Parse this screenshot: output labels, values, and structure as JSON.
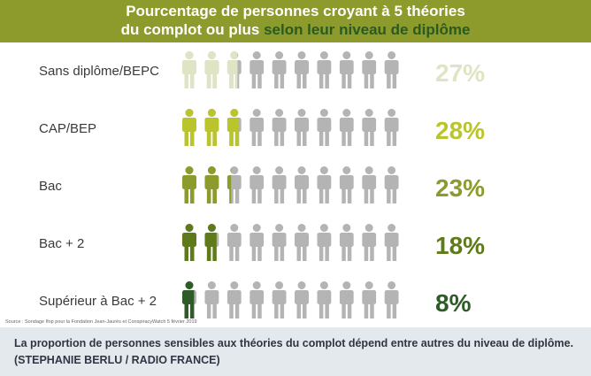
{
  "header": {
    "title_part1": "Pourcentage de personnes croyant à 5 théories",
    "title_part2a": "du complot ou plus ",
    "title_part2b": "selon leur niveau de diplôme"
  },
  "chart_data": {
    "type": "pictogram",
    "unit": "%",
    "icons_per_row": 10,
    "inactive_color": "#b4b4b4",
    "categories": [
      "Sans diplôme/BEPC",
      "CAP/BEP",
      "Bac",
      "Bac + 2",
      "Supérieur à Bac + 2"
    ],
    "values": [
      27,
      28,
      23,
      18,
      8
    ],
    "value_labels": [
      "27%",
      "28%",
      "23%",
      "18%",
      "8%"
    ],
    "colors": [
      "#dfe5c4",
      "#bac42d",
      "#8d9a2c",
      "#5f7a18",
      "#2e5b28"
    ]
  },
  "source": "Source : Sondage Ifop pour la Fondation Jean-Jaurès et ConspiracyWatch 5 février 2019",
  "caption": "La proportion de personnes sensibles aux théories du complot dépend entre autres du niveau de diplôme.  (STEPHANIE BERLU / RADIO FRANCE)"
}
